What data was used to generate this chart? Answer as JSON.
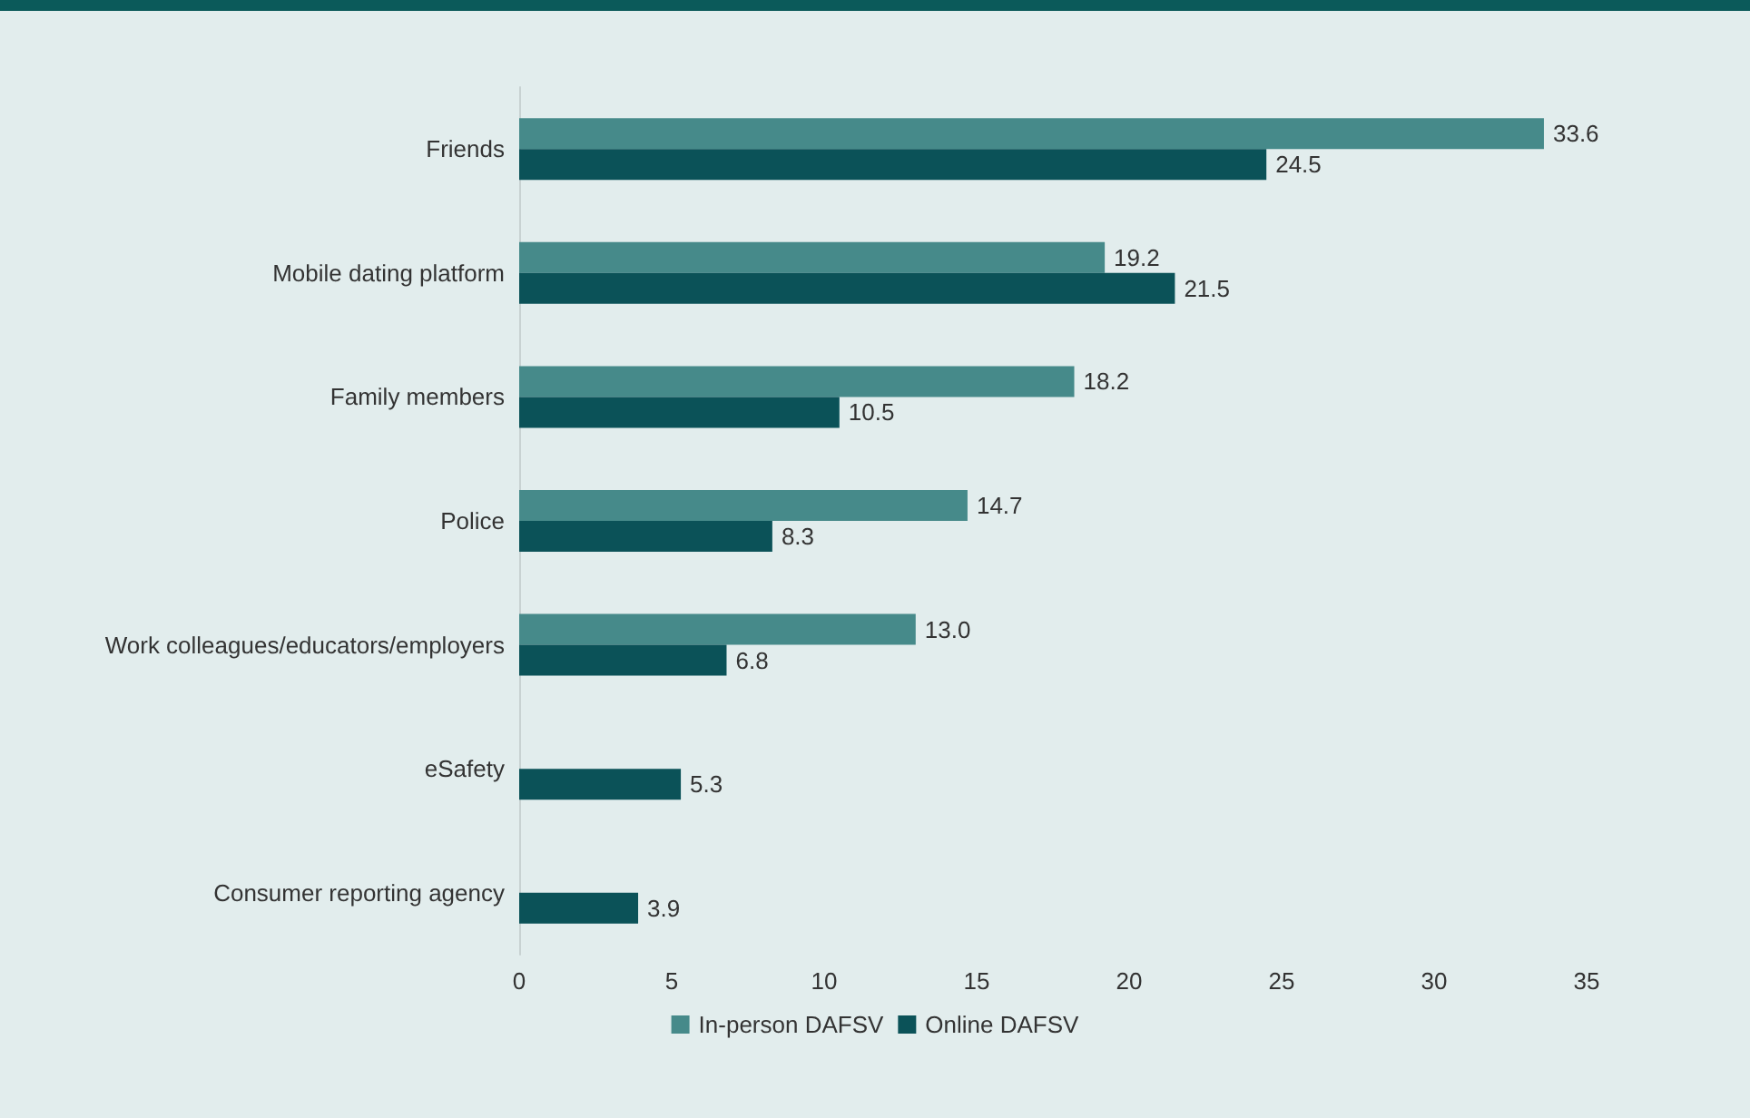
{
  "chart_data": {
    "type": "bar",
    "orientation": "horizontal",
    "categories": [
      "Friends",
      "Mobile dating platform",
      "Family members",
      "Police",
      "Work colleagues/educators/employers",
      "eSafety",
      "Consumer reporting agency"
    ],
    "series": [
      {
        "name": "In-person DAFSV",
        "color": "#468a8a",
        "values": [
          33.6,
          19.2,
          18.2,
          14.7,
          13.0,
          null,
          null
        ],
        "value_labels": [
          "33.6",
          "19.2",
          "18.2",
          "14.7",
          "13.0",
          null,
          null
        ]
      },
      {
        "name": "Online DAFSV",
        "color": "#0b5258",
        "values": [
          24.5,
          21.5,
          10.5,
          8.3,
          6.8,
          5.3,
          3.9
        ],
        "value_labels": [
          "24.5",
          "21.5",
          "10.5",
          "8.3",
          "6.8",
          "5.3",
          "3.9"
        ]
      }
    ],
    "xlim": [
      0,
      35
    ],
    "xticks": [
      0,
      5,
      10,
      15,
      20,
      25,
      30,
      35
    ],
    "grid": false,
    "legend": "bottom"
  }
}
